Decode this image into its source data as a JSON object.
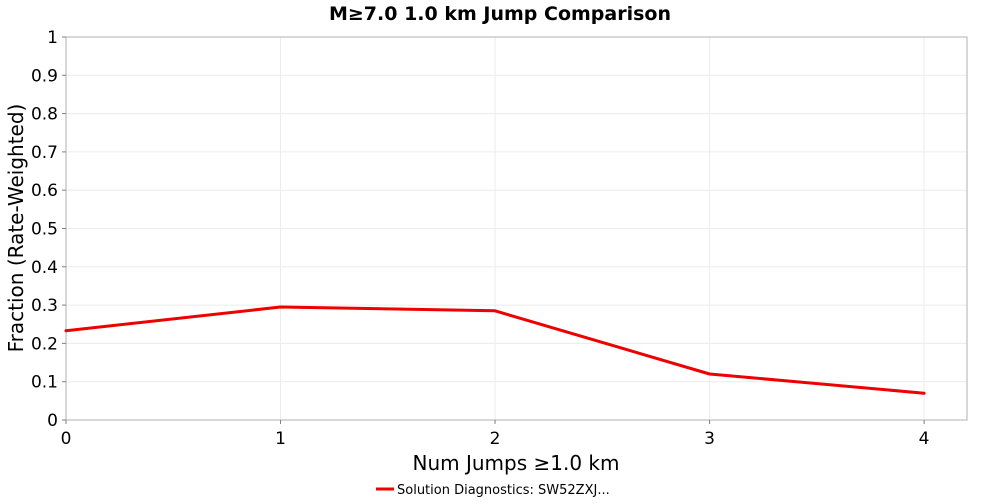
{
  "chart_data": {
    "type": "line",
    "title": "M≥7.0 1.0 km Jump Comparison",
    "xlabel": "Num Jumps ≥1.0 km",
    "ylabel": "Fraction (Rate-Weighted)",
    "xlim": [
      0,
      4.2
    ],
    "ylim": [
      0,
      1
    ],
    "x_ticks": [
      "0",
      "1",
      "2",
      "3",
      "4"
    ],
    "y_ticks": [
      "0",
      "0.1",
      "0.2",
      "0.3",
      "0.4",
      "0.5",
      "0.6",
      "0.7",
      "0.8",
      "0.9",
      "1"
    ],
    "grid": true,
    "legend_position": "bottom-center",
    "series": [
      {
        "name": "Solution Diagnostics: SW52ZXJ...",
        "color": "#ee0000",
        "x": [
          0,
          1,
          2,
          3,
          4
        ],
        "y": [
          0.233,
          0.295,
          0.285,
          0.12,
          0.07
        ]
      }
    ]
  }
}
